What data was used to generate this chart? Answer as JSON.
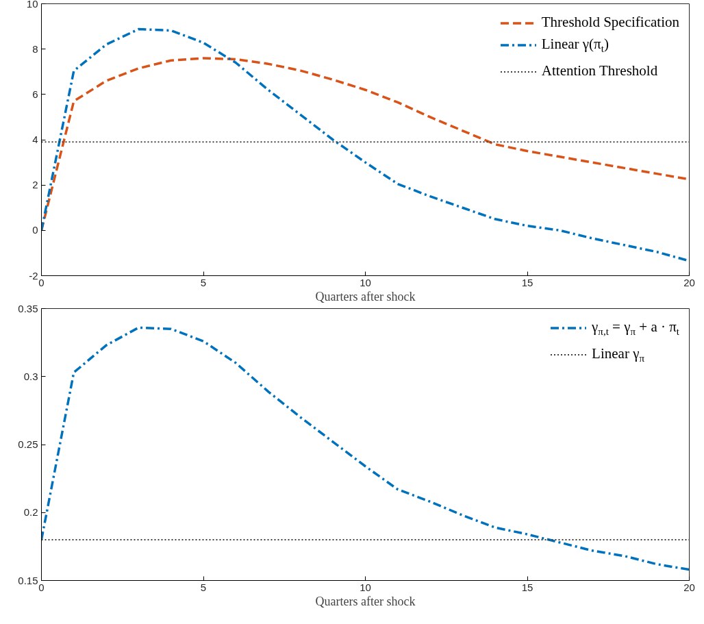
{
  "chart_data": [
    {
      "type": "line",
      "x": [
        0,
        1,
        2,
        3,
        4,
        5,
        6,
        7,
        8,
        9,
        10,
        11,
        12,
        13,
        14,
        15,
        16,
        17,
        18,
        19,
        20
      ],
      "xlabel": "Quarters after shock",
      "xlim": [
        0,
        20
      ],
      "xticks": [
        0,
        5,
        10,
        15,
        20
      ],
      "ylim": [
        -2,
        10
      ],
      "yticks": [
        {
          "value": -2,
          "label": "-2"
        },
        0,
        2,
        4,
        6,
        8,
        10
      ],
      "grid": false,
      "legend": "top right",
      "series": [
        {
          "name": "Threshold Specification",
          "color": "#d95319",
          "line_style": "dashed",
          "values": [
            0,
            5.7,
            6.6,
            7.15,
            7.5,
            7.6,
            7.55,
            7.35,
            7.05,
            6.65,
            6.2,
            5.65,
            5.0,
            4.4,
            3.8,
            3.5,
            3.25,
            3.0,
            2.75,
            2.5,
            2.25
          ]
        },
        {
          "name": "Linear γ(π$_{t}$)",
          "color": "#0072bd",
          "line_style": "dashdot",
          "values": [
            0,
            7.04,
            8.2,
            8.88,
            8.82,
            8.28,
            7.4,
            6.2,
            5.1,
            4.0,
            3.0,
            2.05,
            1.5,
            1.0,
            0.5,
            0.2,
            0.0,
            -0.35,
            -0.65,
            -0.95,
            -1.35
          ]
        }
      ],
      "ref_lines": [
        {
          "axis": "y",
          "value": 3.9,
          "label": "Attention Threshold",
          "color": "#404040",
          "line_style": "dotted"
        }
      ]
    },
    {
      "type": "line",
      "x": [
        0,
        1,
        2,
        3,
        4,
        5,
        6,
        7,
        8,
        9,
        10,
        11,
        12,
        13,
        14,
        15,
        16,
        17,
        18,
        19,
        20
      ],
      "xlabel": "Quarters after shock",
      "xlim": [
        0,
        20
      ],
      "xticks": [
        0,
        5,
        10,
        15,
        20
      ],
      "ylim": [
        0.15,
        0.35
      ],
      "yticks": [
        0.15,
        0.2,
        0.25,
        0.3,
        0.35
      ],
      "grid": false,
      "legend": "top right",
      "series": [
        {
          "name": "γ$_{π,t}$ = γ$_{π}$ + a · π$_{t}$",
          "color": "#0072bd",
          "line_style": "dashdot",
          "values": [
            0.18,
            0.303,
            0.323,
            0.336,
            0.335,
            0.326,
            0.31,
            0.289,
            0.27,
            0.252,
            0.234,
            0.217,
            0.208,
            0.198,
            0.189,
            0.184,
            0.178,
            0.172,
            0.168,
            0.162,
            0.158
          ]
        }
      ],
      "ref_lines": [
        {
          "axis": "y",
          "value": 0.18,
          "label": "Linear γ$_{π}$",
          "color": "#404040",
          "line_style": "dotted"
        }
      ]
    }
  ]
}
